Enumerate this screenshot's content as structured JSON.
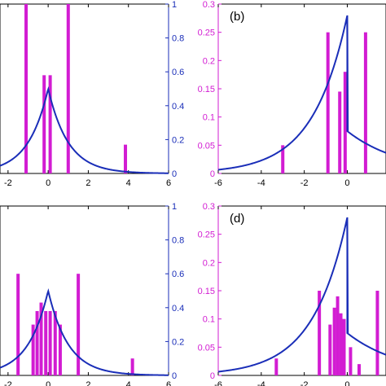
{
  "colors": {
    "bars": "#d21cd2",
    "curve": "#1a2eb8",
    "axes": "#000000",
    "right_ticks": "#1a2eb8",
    "left_ticks": "#d21cd2"
  },
  "chart_data": [
    {
      "panel": "a",
      "type": "bar",
      "panel_label": "",
      "bars": [
        {
          "x": -1.1,
          "y": 1.0
        },
        {
          "x": -0.2,
          "y": 0.58
        },
        {
          "x": 0.1,
          "y": 0.58
        },
        {
          "x": 1.0,
          "y": 1.0
        },
        {
          "x": 3.85,
          "y": 0.17
        }
      ],
      "bar_axis": "right",
      "curve": {
        "family": "exponential",
        "peak_x": 0,
        "peak_y": 0.5,
        "decay_left": 1.0,
        "decay_right": 1.0
      },
      "xlim": [
        -2.4,
        6
      ],
      "xticks": [
        "-2",
        "0",
        "2",
        "4",
        "6"
      ],
      "right_ylim": [
        0,
        1
      ],
      "right_yticks": [
        "0",
        "0.2",
        "0.4",
        "0.6",
        "0.8",
        "1"
      ],
      "left_yticks": []
    },
    {
      "panel": "b",
      "type": "bar",
      "panel_label": "(b)",
      "bars": [
        {
          "x": -3.0,
          "y": 0.05
        },
        {
          "x": -0.9,
          "y": 0.25
        },
        {
          "x": -0.35,
          "y": 0.145
        },
        {
          "x": -0.1,
          "y": 0.18
        },
        {
          "x": 0.85,
          "y": 0.25
        }
      ],
      "bar_axis": "left",
      "curve": {
        "family": "exponential",
        "peak_x": 0,
        "peak_y": 0.28,
        "decay_left": 1.6,
        "decay_right": 0.25,
        "right_base": 0.075
      },
      "xlim": [
        -6,
        1.8
      ],
      "xticks": [
        "-6",
        "-4",
        "-2",
        "0"
      ],
      "left_ylim": [
        0,
        0.3
      ],
      "left_yticks": [
        "0",
        "0.05",
        "0.1",
        "0.15",
        "0.2",
        "0.25",
        "0.3"
      ]
    },
    {
      "panel": "c",
      "type": "bar",
      "panel_label": "",
      "bars": [
        {
          "x": -1.5,
          "y": 0.6
        },
        {
          "x": -0.75,
          "y": 0.3
        },
        {
          "x": -0.55,
          "y": 0.38
        },
        {
          "x": -0.35,
          "y": 0.43
        },
        {
          "x": -0.12,
          "y": 0.38
        },
        {
          "x": 0.1,
          "y": 0.38
        },
        {
          "x": 0.35,
          "y": 0.38
        },
        {
          "x": 0.6,
          "y": 0.3
        },
        {
          "x": 1.5,
          "y": 0.6
        },
        {
          "x": 4.2,
          "y": 0.1
        }
      ],
      "bar_axis": "right",
      "curve": {
        "family": "exponential",
        "peak_x": 0,
        "peak_y": 0.5,
        "decay_left": 1.0,
        "decay_right": 1.0
      },
      "xlim": [
        -2.4,
        6
      ],
      "xticks": [
        "-2",
        "0",
        "2",
        "4",
        "6"
      ],
      "right_ylim": [
        0,
        1
      ],
      "right_yticks": [
        "0",
        "0.2",
        "0.4",
        "0.6",
        "0.8",
        "1"
      ],
      "left_yticks": []
    },
    {
      "panel": "d",
      "type": "bar",
      "panel_label": "(d)",
      "bars": [
        {
          "x": -3.3,
          "y": 0.03
        },
        {
          "x": -1.3,
          "y": 0.15
        },
        {
          "x": -0.8,
          "y": 0.09
        },
        {
          "x": -0.6,
          "y": 0.12
        },
        {
          "x": -0.45,
          "y": 0.14
        },
        {
          "x": -0.3,
          "y": 0.11
        },
        {
          "x": -0.15,
          "y": 0.1
        },
        {
          "x": 0.15,
          "y": 0.05
        },
        {
          "x": 0.55,
          "y": 0.02
        },
        {
          "x": 1.4,
          "y": 0.15
        }
      ],
      "bar_axis": "left",
      "curve": {
        "family": "exponential",
        "peak_x": 0,
        "peak_y": 0.28,
        "decay_left": 1.6,
        "decay_right": 0.25,
        "right_base": 0.075
      },
      "xlim": [
        -6,
        1.8
      ],
      "xticks": [
        "-6",
        "-4",
        "-2",
        "0"
      ],
      "left_ylim": [
        0,
        0.3
      ],
      "left_yticks": [
        "0",
        "0.05",
        "0.1",
        "0.15",
        "0.2",
        "0.25",
        "0.3"
      ]
    }
  ]
}
